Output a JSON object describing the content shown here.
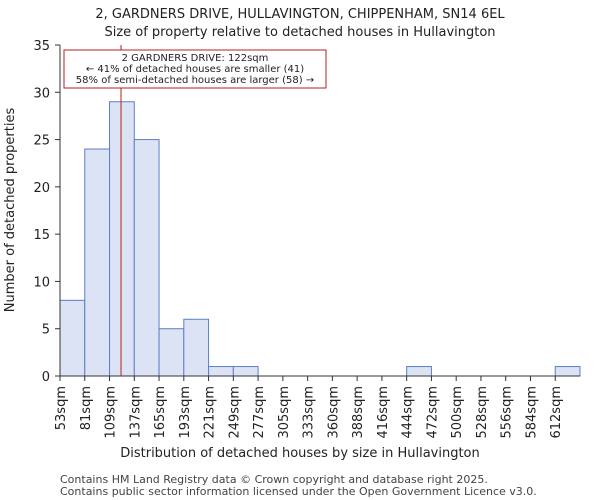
{
  "chart_data": {
    "type": "bar",
    "title_line1": "2, GARDNERS DRIVE, HULLAVINGTON, CHIPPENHAM, SN14 6EL",
    "title_line2": "Size of property relative to detached houses in Hullavington",
    "xlabel": "Distribution of detached houses by size in Hullavington",
    "ylabel": "Number of detached properties",
    "categories": [
      "53sqm",
      "81sqm",
      "109sqm",
      "137sqm",
      "165sqm",
      "193sqm",
      "221sqm",
      "249sqm",
      "277sqm",
      "305sqm",
      "333sqm",
      "360sqm",
      "388sqm",
      "416sqm",
      "444sqm",
      "472sqm",
      "500sqm",
      "528sqm",
      "556sqm",
      "584sqm",
      "612sqm"
    ],
    "values": [
      8,
      24,
      29,
      25,
      5,
      6,
      1,
      1,
      0,
      0,
      0,
      0,
      0,
      0,
      1,
      0,
      0,
      0,
      0,
      0,
      1
    ],
    "yticks": [
      0,
      5,
      10,
      15,
      20,
      25,
      30,
      35
    ],
    "ylim": [
      0,
      35
    ],
    "marker_value": 122,
    "annotation": {
      "line1": "2 GARDNERS DRIVE: 122sqm",
      "line2": "← 41% of detached houses are smaller (41)",
      "line3": "58% of semi-detached houses are larger (58) →"
    },
    "colors": {
      "bar_fill": "#dbe3f4",
      "bar_edge": "#5b7fc6",
      "marker": "#b22222"
    }
  },
  "footer": {
    "line1": "Contains HM Land Registry data © Crown copyright and database right 2025.",
    "line2": "Contains public sector information licensed under the Open Government Licence v3.0."
  }
}
